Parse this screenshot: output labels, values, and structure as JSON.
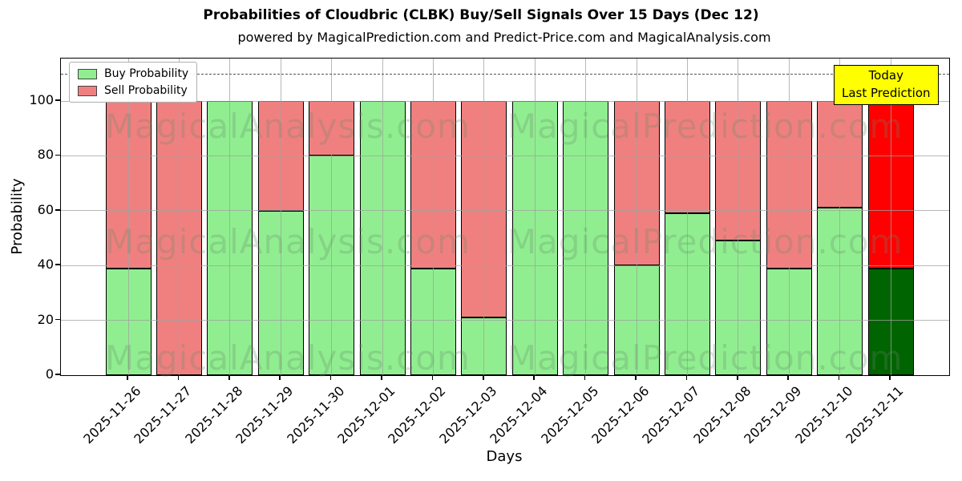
{
  "chart_data": {
    "type": "bar",
    "stacked": true,
    "title": "Probabilities of Cloudbric (CLBK) Buy/Sell Signals Over 15 Days (Dec 12)",
    "subtitle": "powered by MagicalPrediction.com and Predict-Price.com and MagicalAnalysis.com",
    "xlabel": "Days",
    "ylabel": "Probability",
    "categories": [
      "2025-11-26",
      "2025-11-27",
      "2025-11-28",
      "2025-11-29",
      "2025-11-30",
      "2025-12-01",
      "2025-12-02",
      "2025-12-03",
      "2025-12-04",
      "2025-12-05",
      "2025-12-06",
      "2025-12-07",
      "2025-12-08",
      "2025-12-09",
      "2025-12-10",
      "2025-12-11"
    ],
    "series": [
      {
        "name": "Buy Probability",
        "color": "#90EE90",
        "today_color": "#006400",
        "values": [
          39,
          0,
          100,
          60,
          80,
          100,
          39,
          21,
          100,
          100,
          40,
          59,
          49,
          39,
          61,
          39
        ]
      },
      {
        "name": "Sell Probability",
        "color": "#F08080",
        "today_color": "#FF0000",
        "values": [
          61,
          100,
          0,
          40,
          20,
          0,
          61,
          79,
          0,
          0,
          60,
          41,
          51,
          61,
          39,
          61
        ]
      }
    ],
    "ylim": [
      0,
      117
    ],
    "yticks": [
      0,
      20,
      40,
      60,
      80,
      100
    ],
    "grid": true,
    "dashed_line_y": 110,
    "legend_position": "upper left",
    "bar_edge_color": "#000000"
  },
  "annotation": {
    "line1": "Today",
    "line2": "Last Prediction",
    "bg_color": "#FFFF00"
  },
  "watermarks": [
    "MagicalAnalysis.com",
    "MagicalPrediction.com"
  ]
}
